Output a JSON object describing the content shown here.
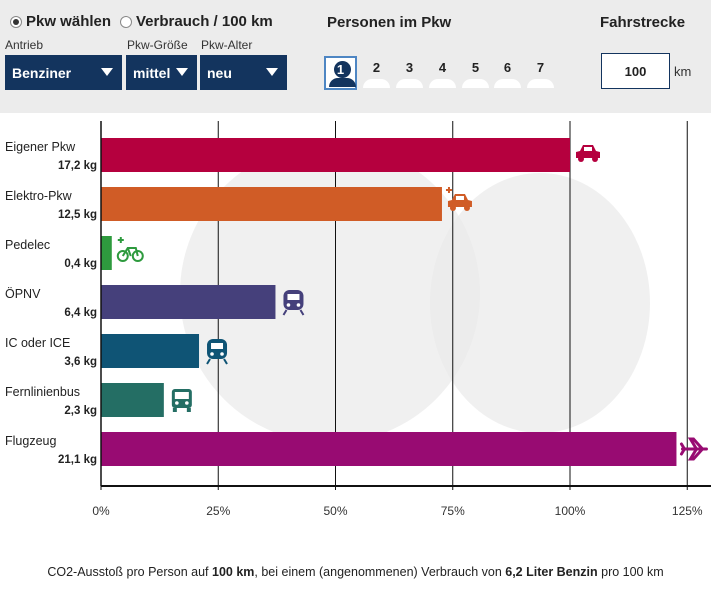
{
  "mode": {
    "options": [
      {
        "label": "Pkw wählen",
        "selected": true
      },
      {
        "label": "Verbrauch / 100 km",
        "selected": false
      }
    ]
  },
  "filters": {
    "antrieb": {
      "label": "Antrieb",
      "value": "Benziner"
    },
    "groesse": {
      "label": "Pkw-Größe",
      "value": "mittel"
    },
    "alter": {
      "label": "Pkw-Alter",
      "value": "neu"
    }
  },
  "persons": {
    "title": "Personen im Pkw",
    "options": [
      "1",
      "2",
      "3",
      "4",
      "5",
      "6",
      "7"
    ],
    "selected": "1"
  },
  "distance": {
    "title": "Fahrstrecke",
    "value": "100",
    "unit": "km"
  },
  "chart_data": {
    "type": "bar",
    "orientation": "horizontal",
    "categories": [
      "Eigener Pkw",
      "Elektro-Pkw",
      "Pedelec",
      "ÖPNV",
      "IC oder ICE",
      "Fernlinienbus",
      "Flugzeug"
    ],
    "value_labels": [
      "17,2 kg",
      "12,5 kg",
      "0,4 kg",
      "6,4 kg",
      "3,6 kg",
      "2,3 kg",
      "21,1 kg"
    ],
    "values_kg": [
      17.2,
      12.5,
      0.4,
      6.4,
      3.6,
      2.3,
      21.1
    ],
    "values_pct": [
      100,
      72.7,
      2.3,
      37.2,
      20.9,
      13.4,
      122.7
    ],
    "colors": [
      "#b5003e",
      "#d05c26",
      "#2e9a3e",
      "#45407b",
      "#0f5475",
      "#246e64",
      "#980b72"
    ],
    "icons": [
      "car-icon",
      "electric-car-icon",
      "pedelec-icon",
      "tram-icon",
      "train-icon",
      "bus-icon",
      "airplane-icon"
    ],
    "xlim": [
      0,
      130
    ],
    "xticks": [
      0,
      25,
      50,
      75,
      100,
      125
    ],
    "xtick_labels": [
      "0%",
      "25%",
      "50%",
      "75%",
      "100%",
      "125%"
    ],
    "grid": true
  },
  "caption": {
    "p1": "CO2-Ausstoß pro Person auf ",
    "b1": "100 km",
    "p2": ", bei einem (angenommenen) Verbrauch von ",
    "b2": "6,2 Liter Benzin",
    "p3": " pro 100 km"
  }
}
